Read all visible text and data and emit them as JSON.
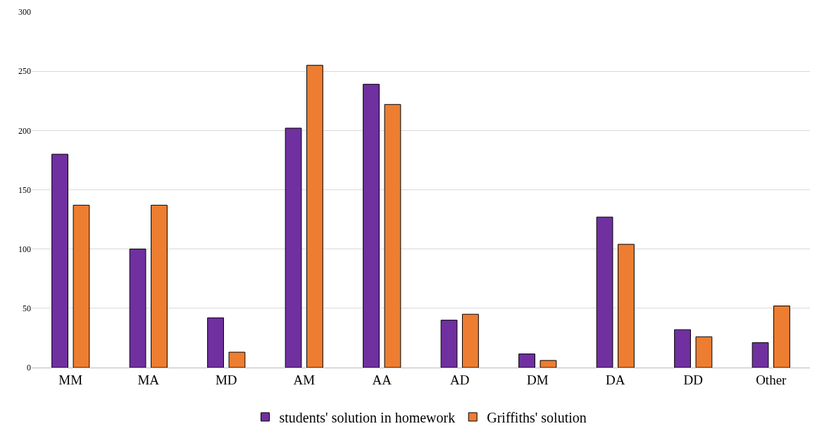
{
  "chart_data": {
    "type": "bar",
    "categories": [
      "MM",
      "MA",
      "MD",
      "AM",
      "AA",
      "AD",
      "DM",
      "DA",
      "DD",
      "Other"
    ],
    "series": [
      {
        "name": "students' solution in homework",
        "color": "#7030a0",
        "values": [
          180,
          100,
          42,
          202,
          239,
          40,
          11.5,
          127,
          32,
          21
        ]
      },
      {
        "name": "Griffiths' solution",
        "color": "#ed7d31",
        "values": [
          137,
          137,
          13,
          255,
          222,
          45,
          6,
          104,
          26,
          52
        ]
      }
    ],
    "ylim": [
      0,
      300
    ],
    "yticks": [
      0,
      50,
      100,
      150,
      200,
      250,
      300
    ],
    "grid": "y",
    "legend": "bottom"
  }
}
